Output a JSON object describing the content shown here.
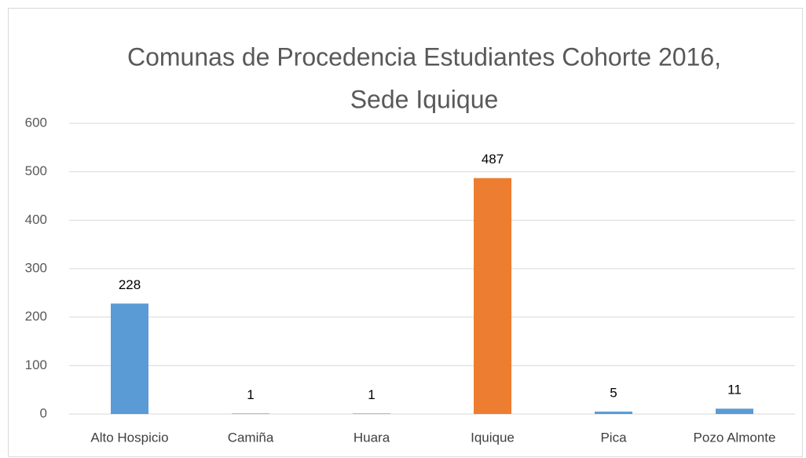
{
  "chart_data": {
    "type": "bar",
    "title": [
      "Comunas de Procedencia Estudiantes Cohorte 2016,",
      "Sede Iquique"
    ],
    "categories": [
      "Alto Hospicio",
      "Camiña",
      "Huara",
      "Iquique",
      "Pica",
      "Pozo Almonte"
    ],
    "values": [
      228,
      1,
      1,
      487,
      5,
      11
    ],
    "colors": [
      "#5b9bd5",
      "#5b9bd5",
      "#5b9bd5",
      "#ed7d31",
      "#5b9bd5",
      "#5b9bd5"
    ],
    "ylim": [
      0,
      600
    ],
    "yticks": [
      0,
      100,
      200,
      300,
      400,
      500,
      600
    ],
    "grid": true,
    "data_labels": true
  }
}
